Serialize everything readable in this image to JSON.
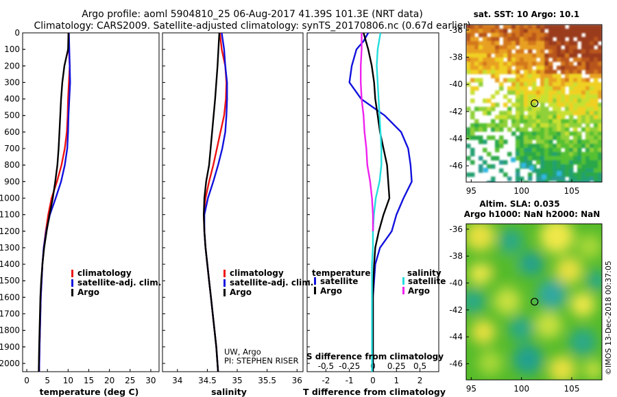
{
  "title": {
    "line1": "Argo profile: aoml 5904810_25 06-Aug-2017 41.39S 101.3E (NRT data)",
    "line2": "Climatology: CARS2009. Satellite-adjusted climatology: synTS_20170806.nc (0.67d earlier)"
  },
  "colors": {
    "climatology": "#ee1111",
    "satellite": "#1111dd",
    "argo": "#000000",
    "satellite_s": "#22dddd",
    "argo_s": "#ee22ee"
  },
  "depth_axis": {
    "range": [
      0,
      2050
    ],
    "ticks": [
      0,
      100,
      200,
      300,
      400,
      500,
      600,
      700,
      800,
      900,
      1000,
      1100,
      1200,
      1300,
      1400,
      1500,
      1600,
      1700,
      1800,
      1900,
      2000
    ]
  },
  "chart_data": [
    {
      "type": "line",
      "name": "temperature-panel",
      "xlabel": "temperature (deg C)",
      "xlim": [
        -1,
        32
      ],
      "xticks": [
        0,
        5,
        10,
        15,
        20,
        25,
        30
      ],
      "ylim": [
        2050,
        0
      ],
      "legend": {
        "location": "bottom-right",
        "entries": [
          "climatology",
          "satellite-adj. clim.",
          "Argo"
        ]
      },
      "series": [
        {
          "name": "climatology",
          "points": [
            [
              10.1,
              0
            ],
            [
              10.2,
              100
            ],
            [
              10.4,
              200
            ],
            [
              10.2,
              300
            ],
            [
              10.0,
              400
            ],
            [
              9.9,
              500
            ],
            [
              9.7,
              600
            ],
            [
              9.2,
              700
            ],
            [
              8.4,
              800
            ],
            [
              7.3,
              900
            ],
            [
              6.0,
              1000
            ],
            [
              5.2,
              1100
            ],
            [
              4.6,
              1200
            ],
            [
              4.1,
              1300
            ],
            [
              3.8,
              1400
            ],
            [
              3.6,
              1500
            ],
            [
              3.4,
              1600
            ],
            [
              3.3,
              1700
            ],
            [
              3.2,
              1800
            ],
            [
              3.1,
              1900
            ],
            [
              3.0,
              2050
            ]
          ]
        },
        {
          "name": "satellite-adj. clim.",
          "points": [
            [
              10.2,
              0
            ],
            [
              10.3,
              100
            ],
            [
              10.4,
              200
            ],
            [
              10.5,
              300
            ],
            [
              10.3,
              400
            ],
            [
              10.1,
              500
            ],
            [
              10.0,
              600
            ],
            [
              9.8,
              700
            ],
            [
              9.2,
              800
            ],
            [
              8.3,
              900
            ],
            [
              7.0,
              1000
            ],
            [
              5.6,
              1100
            ],
            [
              4.7,
              1200
            ],
            [
              4.1,
              1300
            ],
            [
              3.8,
              1400
            ],
            [
              3.6,
              1500
            ],
            [
              3.4,
              1600
            ],
            [
              3.3,
              1700
            ],
            [
              3.2,
              1800
            ],
            [
              3.1,
              1900
            ],
            [
              3.0,
              2050
            ]
          ]
        },
        {
          "name": "Argo",
          "points": [
            [
              10.1,
              0
            ],
            [
              10.0,
              100
            ],
            [
              9.1,
              200
            ],
            [
              8.6,
              300
            ],
            [
              8.3,
              400
            ],
            [
              8.1,
              500
            ],
            [
              7.9,
              600
            ],
            [
              7.7,
              700
            ],
            [
              7.4,
              800
            ],
            [
              6.9,
              900
            ],
            [
              6.3,
              1000
            ],
            [
              5.5,
              1100
            ],
            [
              4.8,
              1200
            ],
            [
              4.2,
              1300
            ],
            [
              3.8,
              1400
            ],
            [
              3.5,
              1500
            ],
            [
              3.3,
              1600
            ],
            [
              3.2,
              1700
            ],
            [
              3.1,
              1800
            ],
            [
              3.0,
              1900
            ],
            [
              2.9,
              2050
            ]
          ]
        }
      ]
    },
    {
      "type": "line",
      "name": "salinity-panel",
      "xlabel": "salinity",
      "xlim": [
        33.75,
        36.1
      ],
      "xticks": [
        34,
        34.5,
        35,
        35.5,
        36
      ],
      "ylim": [
        2050,
        0
      ],
      "legend": {
        "location": "bottom-right",
        "entries": [
          "climatology",
          "satellite-adj. clim.",
          "Argo"
        ]
      },
      "annotations": [
        "UW, Argo",
        "PI: STEPHEN RISER"
      ],
      "series": [
        {
          "name": "climatology",
          "points": [
            [
              34.71,
              0
            ],
            [
              34.74,
              100
            ],
            [
              34.8,
              200
            ],
            [
              34.82,
              300
            ],
            [
              34.81,
              400
            ],
            [
              34.78,
              500
            ],
            [
              34.72,
              600
            ],
            [
              34.66,
              700
            ],
            [
              34.6,
              800
            ],
            [
              34.53,
              900
            ],
            [
              34.47,
              1000
            ],
            [
              34.44,
              1100
            ],
            [
              34.45,
              1200
            ],
            [
              34.47,
              1300
            ],
            [
              34.5,
              1400
            ],
            [
              34.53,
              1500
            ],
            [
              34.56,
              1600
            ],
            [
              34.59,
              1700
            ],
            [
              34.62,
              1800
            ],
            [
              34.65,
              1900
            ],
            [
              34.68,
              2050
            ]
          ]
        },
        {
          "name": "satellite-adj. clim.",
          "points": [
            [
              34.74,
              0
            ],
            [
              34.78,
              100
            ],
            [
              34.8,
              200
            ],
            [
              34.83,
              300
            ],
            [
              34.83,
              400
            ],
            [
              34.82,
              500
            ],
            [
              34.8,
              600
            ],
            [
              34.75,
              700
            ],
            [
              34.68,
              800
            ],
            [
              34.6,
              900
            ],
            [
              34.51,
              1000
            ],
            [
              34.45,
              1100
            ],
            [
              34.45,
              1200
            ],
            [
              34.47,
              1300
            ],
            [
              34.5,
              1400
            ],
            [
              34.53,
              1500
            ],
            [
              34.56,
              1600
            ],
            [
              34.59,
              1700
            ],
            [
              34.62,
              1800
            ],
            [
              34.65,
              1900
            ],
            [
              34.68,
              2050
            ]
          ]
        },
        {
          "name": "Argo",
          "points": [
            [
              34.7,
              0
            ],
            [
              34.67,
              200
            ],
            [
              34.63,
              400
            ],
            [
              34.58,
              600
            ],
            [
              34.53,
              800
            ],
            [
              34.48,
              900
            ],
            [
              34.45,
              1000
            ],
            [
              34.44,
              1100
            ],
            [
              34.45,
              1200
            ],
            [
              34.47,
              1300
            ],
            [
              34.5,
              1400
            ],
            [
              34.53,
              1500
            ],
            [
              34.56,
              1600
            ],
            [
              34.59,
              1700
            ],
            [
              34.62,
              1800
            ],
            [
              34.65,
              1900
            ],
            [
              34.68,
              2050
            ]
          ]
        }
      ]
    },
    {
      "type": "line",
      "name": "difference-panel",
      "xlabel": "T difference from climatology",
      "xlim": [
        -2.8,
        2.8
      ],
      "xticks": [
        -2,
        -1,
        0,
        1,
        2
      ],
      "ylim": [
        2050,
        0
      ],
      "top_axis": {
        "label": "S difference from climatology",
        "ticks": [
          "-0.5",
          "-0.25",
          "0",
          "0.25",
          "0.5"
        ],
        "values": [
          -0.5,
          -0.25,
          0,
          0.25,
          0.5
        ],
        "scale": [
          -0.7,
          0.7
        ]
      },
      "legend": {
        "location": "bottom",
        "groups": [
          {
            "heading": "temperature",
            "entries": [
              "satellite",
              "Argo"
            ]
          },
          {
            "heading": "salinity",
            "entries": [
              "satellite",
              "Argo"
            ]
          }
        ]
      },
      "series": [
        {
          "name": "T satellite",
          "axis": "T",
          "points": [
            [
              -0.2,
              0
            ],
            [
              -0.4,
              50
            ],
            [
              -0.7,
              100
            ],
            [
              -0.9,
              200
            ],
            [
              -1.0,
              300
            ],
            [
              -0.5,
              400
            ],
            [
              0.5,
              500
            ],
            [
              1.2,
              600
            ],
            [
              1.5,
              700
            ],
            [
              1.6,
              800
            ],
            [
              1.65,
              900
            ],
            [
              1.3,
              1000
            ],
            [
              1.0,
              1100
            ],
            [
              0.8,
              1200
            ],
            [
              0.3,
              1300
            ],
            [
              0.1,
              1400
            ],
            [
              0.05,
              1500
            ],
            [
              0.0,
              1600
            ],
            [
              0.0,
              2050
            ]
          ]
        },
        {
          "name": "T Argo",
          "axis": "T",
          "points": [
            [
              -0.4,
              0
            ],
            [
              -0.2,
              100
            ],
            [
              -0.05,
              200
            ],
            [
              0.05,
              300
            ],
            [
              0.1,
              400
            ],
            [
              0.2,
              500
            ],
            [
              0.3,
              600
            ],
            [
              0.45,
              700
            ],
            [
              0.6,
              800
            ],
            [
              0.65,
              900
            ],
            [
              0.7,
              1000
            ],
            [
              0.45,
              1100
            ],
            [
              0.25,
              1200
            ],
            [
              0.1,
              1300
            ],
            [
              0.05,
              1400
            ],
            [
              0.02,
              1500
            ],
            [
              0.0,
              1600
            ],
            [
              0.0,
              2050
            ]
          ]
        },
        {
          "name": "S satellite",
          "axis": "S",
          "points": [
            [
              0.08,
              0
            ],
            [
              0.05,
              100
            ],
            [
              0.04,
              200
            ],
            [
              0.05,
              300
            ],
            [
              0.06,
              400
            ],
            [
              0.07,
              500
            ],
            [
              0.08,
              600
            ],
            [
              0.09,
              700
            ],
            [
              0.09,
              800
            ],
            [
              0.07,
              900
            ],
            [
              0.03,
              1000
            ],
            [
              0.01,
              1100
            ],
            [
              0.0,
              1200
            ],
            [
              0.0,
              1300
            ],
            [
              -0.01,
              1400
            ],
            [
              -0.01,
              1500
            ],
            [
              -0.01,
              1600
            ],
            [
              -0.01,
              2050
            ]
          ]
        },
        {
          "name": "S Argo",
          "axis": "S",
          "points": [
            [
              -0.12,
              0
            ],
            [
              -0.12,
              100
            ],
            [
              -0.13,
              200
            ],
            [
              -0.13,
              300
            ],
            [
              -0.12,
              400
            ],
            [
              -0.1,
              500
            ],
            [
              -0.09,
              600
            ],
            [
              -0.07,
              700
            ],
            [
              -0.06,
              800
            ],
            [
              -0.03,
              900
            ],
            [
              -0.01,
              1000
            ],
            [
              0.0,
              1100
            ],
            [
              0.0,
              1200
            ]
          ]
        }
      ]
    },
    {
      "type": "heatmap",
      "name": "sst-map",
      "title": "sat. SST: 10 Argo: 10.1",
      "xticks": [
        "95",
        "100",
        "105"
      ],
      "yticks": [
        "-36",
        "-38",
        "-40",
        "-42",
        "-44",
        "-46"
      ],
      "xlim": [
        94.5,
        108
      ],
      "ylim": [
        -47.2,
        -35.6
      ],
      "xtick_values": [
        95,
        100,
        105
      ],
      "ytick_values": [
        -36,
        -38,
        -40,
        -42,
        -44,
        -46
      ],
      "marker": {
        "lon": 101.3,
        "lat": -41.39
      }
    },
    {
      "type": "heatmap",
      "name": "sla-map",
      "title": "Altim. SLA: 0.035",
      "subtitle": "Argo h1000: NaN h2000: NaN",
      "xticks": [
        "95",
        "100",
        "105"
      ],
      "yticks": [
        "-36",
        "-38",
        "-40",
        "-42",
        "-44",
        "-46"
      ],
      "xlim": [
        94.5,
        108
      ],
      "ylim": [
        -47.2,
        -35.6
      ],
      "xtick_values": [
        95,
        100,
        105
      ],
      "ytick_values": [
        -36,
        -38,
        -40,
        -42,
        -44,
        -46
      ],
      "marker": {
        "lon": 101.3,
        "lat": -41.39
      }
    }
  ],
  "stamp": "©IMOS 13-Dec-2018 00:37:05"
}
